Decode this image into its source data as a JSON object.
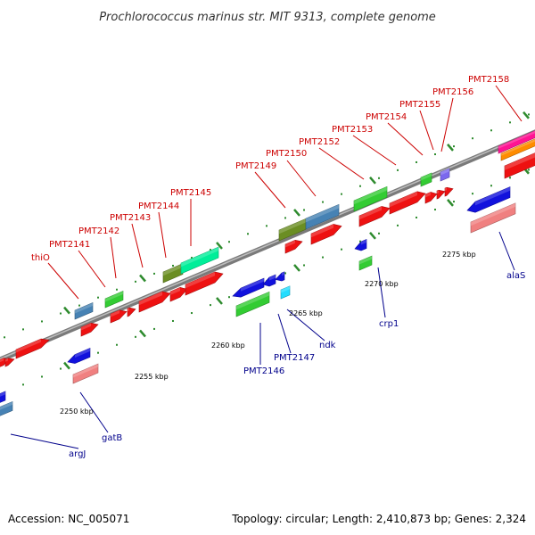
{
  "title": "Prochlorococcus marinus str. MIT 9313, complete genome",
  "footer": {
    "accession": "Accession: NC_005071",
    "summary": "Topology: circular; Length: 2,410,873 bp; Genes: 2,324"
  },
  "scale": {
    "unit": "kbp",
    "ticks": [
      "2250 kbp",
      "2255 kbp",
      "2260 kbp",
      "2265 kbp",
      "2270 kbp",
      "2275 kbp"
    ]
  },
  "top_labels": [
    "thiO",
    "PMT2141",
    "PMT2142",
    "PMT2143",
    "PMT2144",
    "PMT2145",
    "PMT2149",
    "PMT2150",
    "PMT2152",
    "PMT2153",
    "PMT2154",
    "PMT2155",
    "PMT2156",
    "PMT2158"
  ],
  "bottom_labels": [
    "argJ",
    "gatB",
    "PMT2146",
    "PMT2147",
    "ndk",
    "crp1",
    "alaS"
  ],
  "colors": {
    "label_top": "#cc0000",
    "label_bottom": "#00008b",
    "backbone": "#808080",
    "tick": "#2e8b2e",
    "red": "#ee1111",
    "green": "#33cc33",
    "olive": "#6b8e23",
    "steelblue": "#4682b4",
    "blue": "#1111dd",
    "salmon": "#f08080",
    "aqua": "#22ddff",
    "lavender": "#7b68ee",
    "spring": "#00ee99",
    "magenta": "#ff1493",
    "orange": "#ff8c00"
  }
}
